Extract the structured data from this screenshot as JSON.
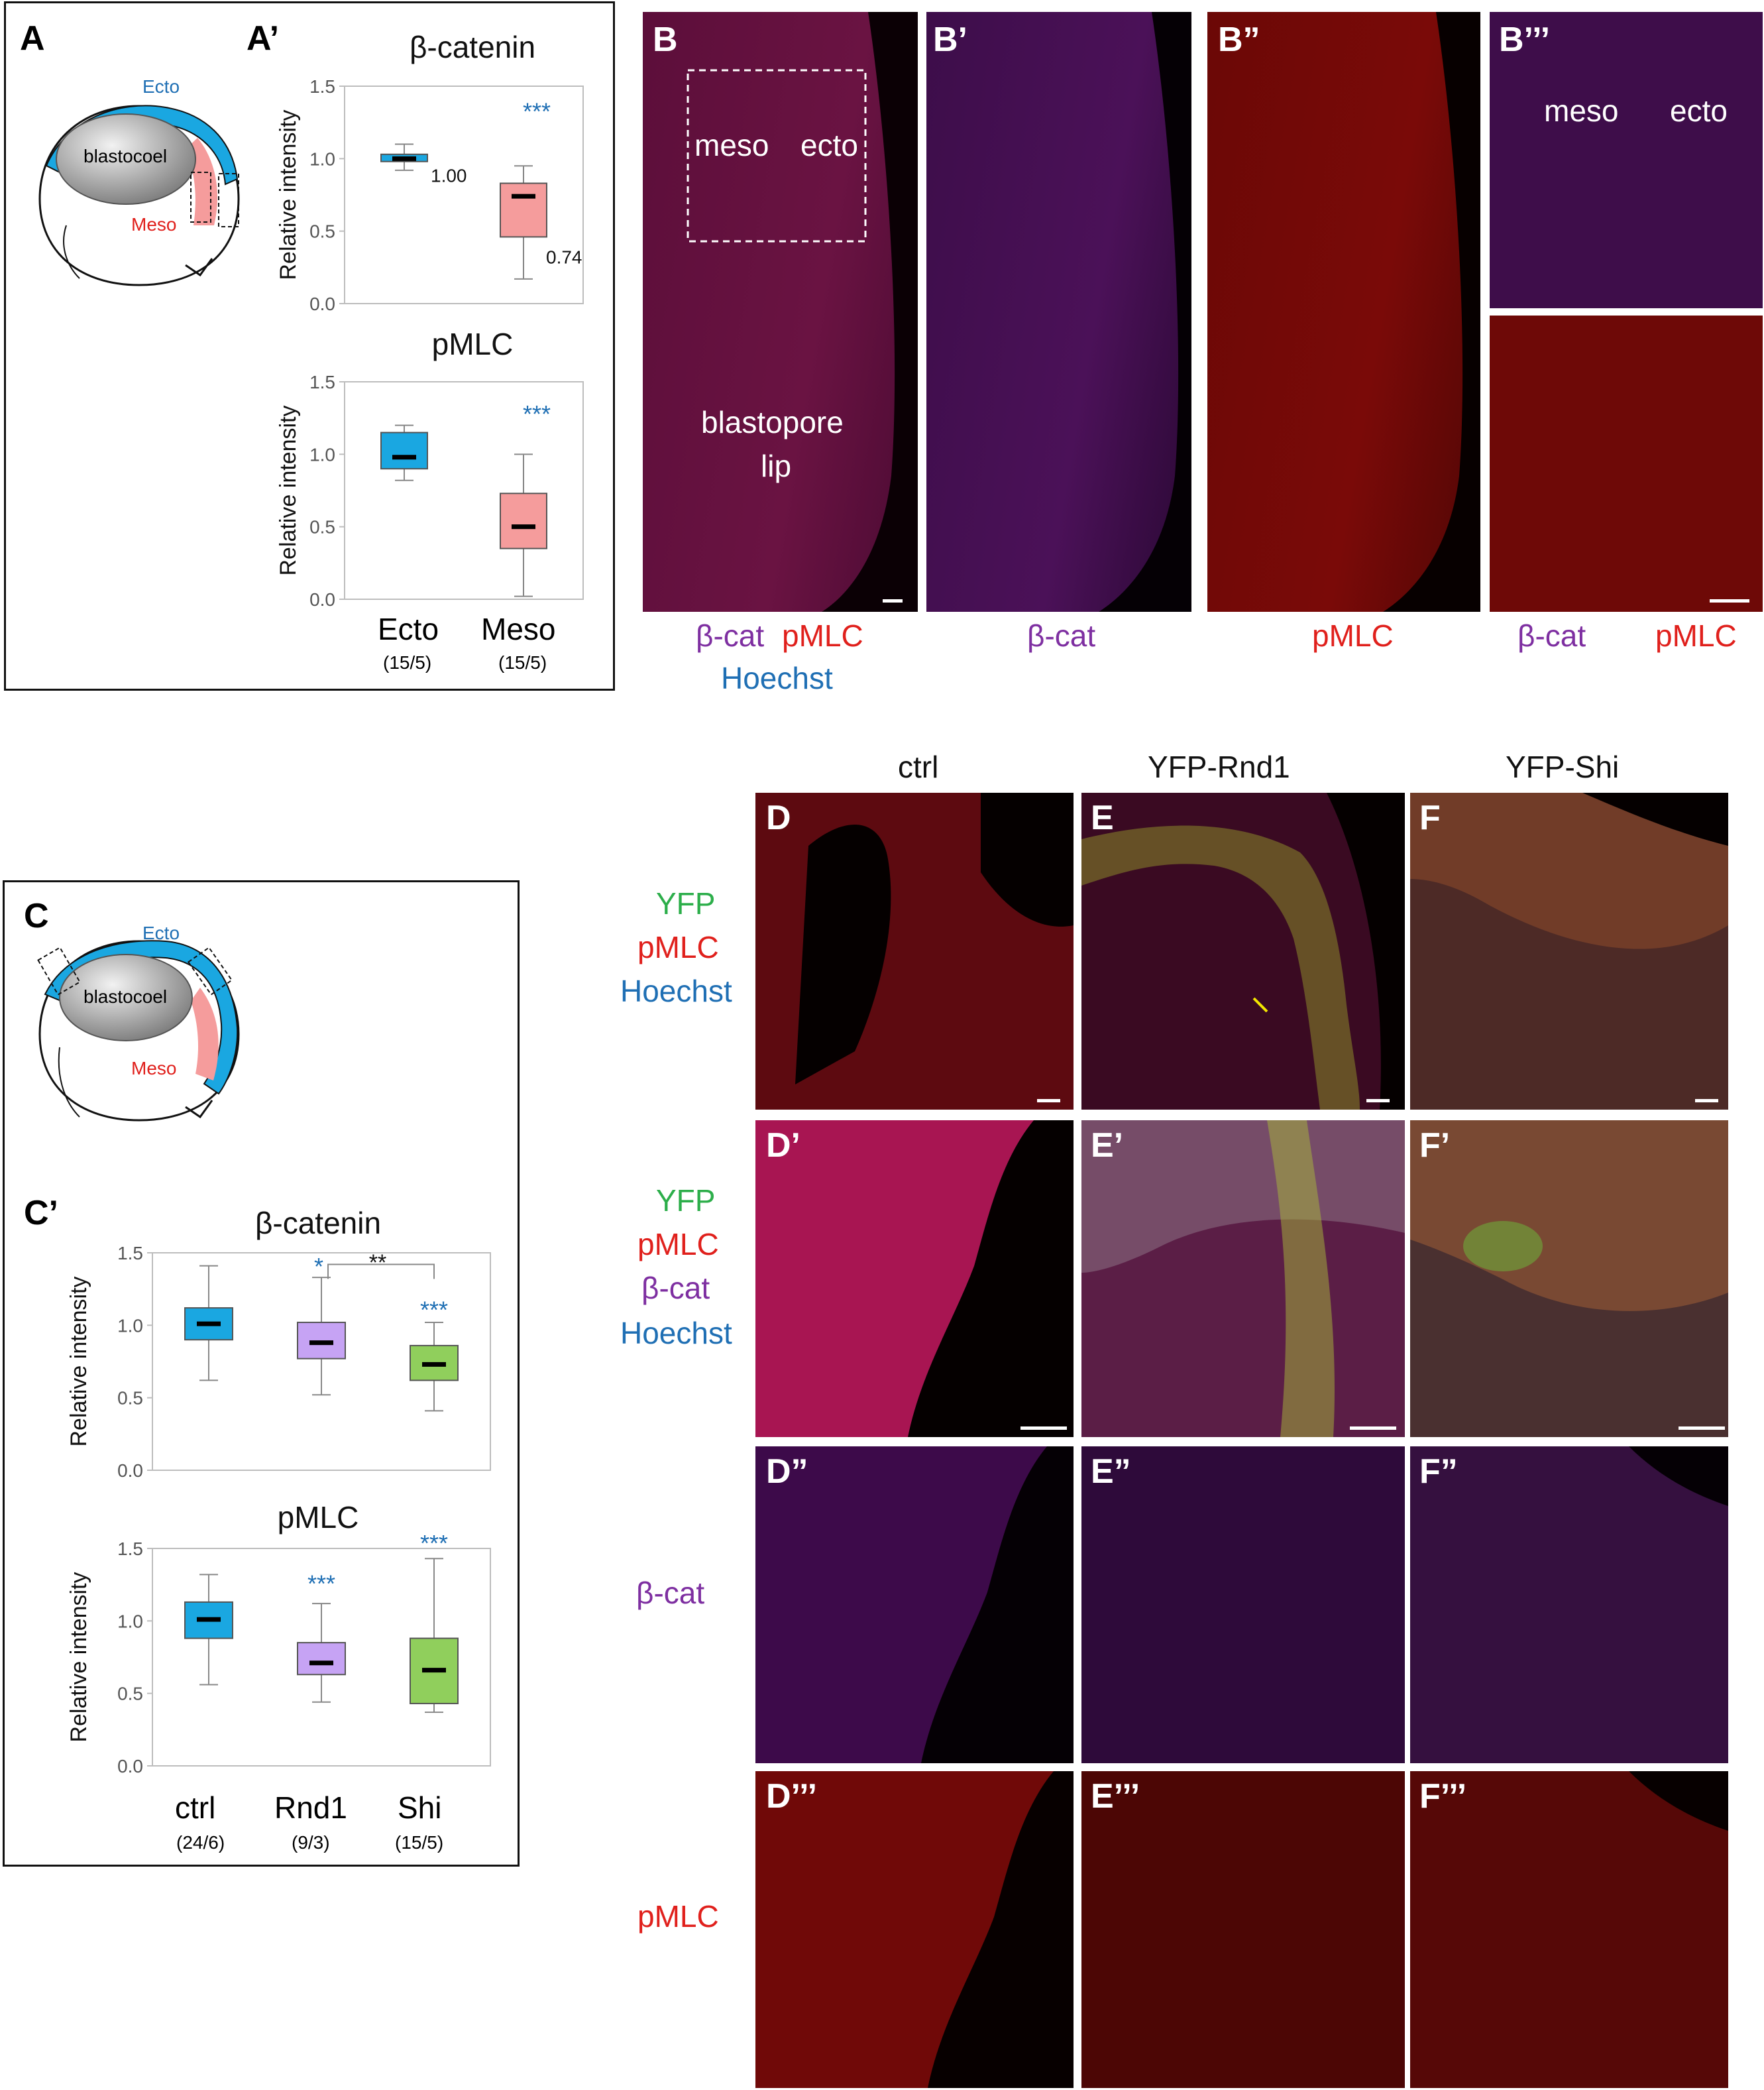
{
  "colors": {
    "ecto": "#1aa7e1",
    "meso": "#f59c9c",
    "rnd1": "#c6a3f4",
    "shi": "#90cf5c",
    "red": "#e0201c",
    "purple": "#7e2fa1",
    "blue": "#1f6fb4",
    "green": "#2cae4a",
    "star_blue": "#1f6fb4"
  },
  "panelA": {
    "label": "A",
    "ecto": "Ecto",
    "meso": "Meso",
    "blastocoel": "blastocoel"
  },
  "panelA2": {
    "label": "A’",
    "beta": {
      "title": "β-catenin",
      "ylabel": "Relative intensity",
      "yticks": [
        "0.0",
        "0.5",
        "1.0",
        "1.5"
      ],
      "val_ecto": "1.00",
      "val_meso": "0.74",
      "stars": "***"
    },
    "pmlc": {
      "title": "pMLC",
      "ylabel": "Relative intensity",
      "yticks": [
        "0.0",
        "0.5",
        "1.0",
        "1.5"
      ],
      "stars": "***"
    },
    "xcats": [
      "Ecto",
      "Meso"
    ],
    "xn": [
      "(15/5)",
      "(15/5)"
    ]
  },
  "panelB": {
    "labels": [
      "B",
      "B’",
      "B”",
      "B’’’"
    ],
    "meso": "meso",
    "ecto": "ecto",
    "blastopore": "blastopore",
    "lip": "lip",
    "cap_b_1": "β-cat",
    "cap_b_2": "pMLC",
    "cap_b_3": "Hoechst",
    "cap_b2": "β-cat",
    "cap_b3": "pMLC",
    "cap_b4_1": "β-cat",
    "cap_b4_2": "pMLC"
  },
  "panelC": {
    "label": "C",
    "ecto": "Ecto",
    "meso": "Meso",
    "blastocoel": "blastocoel"
  },
  "panelC2": {
    "label": "C’",
    "beta": {
      "title": "β-catenin",
      "ylabel": "Relative intensity",
      "yticks": [
        "0.0",
        "0.5",
        "1.0",
        "1.5"
      ],
      "star_rnd1": "*",
      "star_shi": "***",
      "star_pair": "**"
    },
    "pmlc": {
      "title": "pMLC",
      "ylabel": "Relative intensity",
      "yticks": [
        "0.0",
        "0.5",
        "1.0",
        "1.5"
      ],
      "star_rnd1": "***",
      "star_shi": "***"
    },
    "xcats": [
      "ctrl",
      "Rnd1",
      "Shi"
    ],
    "xn": [
      "(24/6)",
      "(9/3)",
      "(15/5)"
    ]
  },
  "panelDEF": {
    "cols": [
      "ctrl",
      "YFP-Rnd1",
      "YFP-Shi"
    ],
    "row1": [
      "YFP",
      "pMLC",
      "Hoechst"
    ],
    "row2": [
      "YFP",
      "pMLC",
      "β-cat",
      "Hoechst"
    ],
    "row3": "β-cat",
    "row4": "pMLC",
    "labels": [
      "D",
      "E",
      "F",
      "D’",
      "E’",
      "F’",
      "D”",
      "E”",
      "F”",
      "D’’’",
      "E’’’",
      "F’’’"
    ]
  },
  "chart_data": [
    {
      "type": "box",
      "title": "β-catenin",
      "ylabel": "Relative intensity",
      "ylim": [
        0,
        1.5
      ],
      "categories": [
        "Ecto",
        "Meso"
      ],
      "boxes": [
        {
          "median": 1.0,
          "q1": 0.98,
          "q3": 1.03,
          "min": 0.92,
          "max": 1.1
        },
        {
          "median": 0.74,
          "q1": 0.46,
          "q3": 0.83,
          "min": 0.17,
          "max": 0.95
        }
      ]
    },
    {
      "type": "box",
      "title": "pMLC",
      "ylabel": "Relative intensity",
      "ylim": [
        0,
        1.5
      ],
      "categories": [
        "Ecto",
        "Meso"
      ],
      "boxes": [
        {
          "median": 0.98,
          "q1": 0.9,
          "q3": 1.15,
          "min": 0.82,
          "max": 1.2
        },
        {
          "median": 0.5,
          "q1": 0.35,
          "q3": 0.73,
          "min": 0.02,
          "max": 1.0
        }
      ]
    },
    {
      "type": "box",
      "title": "β-catenin",
      "ylabel": "Relative intensity",
      "ylim": [
        0,
        1.5
      ],
      "categories": [
        "ctrl",
        "Rnd1",
        "Shi"
      ],
      "boxes": [
        {
          "median": 1.01,
          "q1": 0.9,
          "q3": 1.12,
          "min": 0.62,
          "max": 1.41
        },
        {
          "median": 0.88,
          "q1": 0.77,
          "q3": 1.02,
          "min": 0.52,
          "max": 1.33
        },
        {
          "median": 0.73,
          "q1": 0.62,
          "q3": 0.86,
          "min": 0.41,
          "max": 1.02
        }
      ]
    },
    {
      "type": "box",
      "title": "pMLC",
      "ylabel": "Relative intensity",
      "ylim": [
        0,
        1.5
      ],
      "categories": [
        "ctrl",
        "Rnd1",
        "Shi"
      ],
      "boxes": [
        {
          "median": 1.01,
          "q1": 0.88,
          "q3": 1.13,
          "min": 0.56,
          "max": 1.32
        },
        {
          "median": 0.71,
          "q1": 0.63,
          "q3": 0.85,
          "min": 0.44,
          "max": 1.12
        },
        {
          "median": 0.66,
          "q1": 0.43,
          "q3": 0.88,
          "min": 0.37,
          "max": 1.43
        }
      ]
    }
  ]
}
